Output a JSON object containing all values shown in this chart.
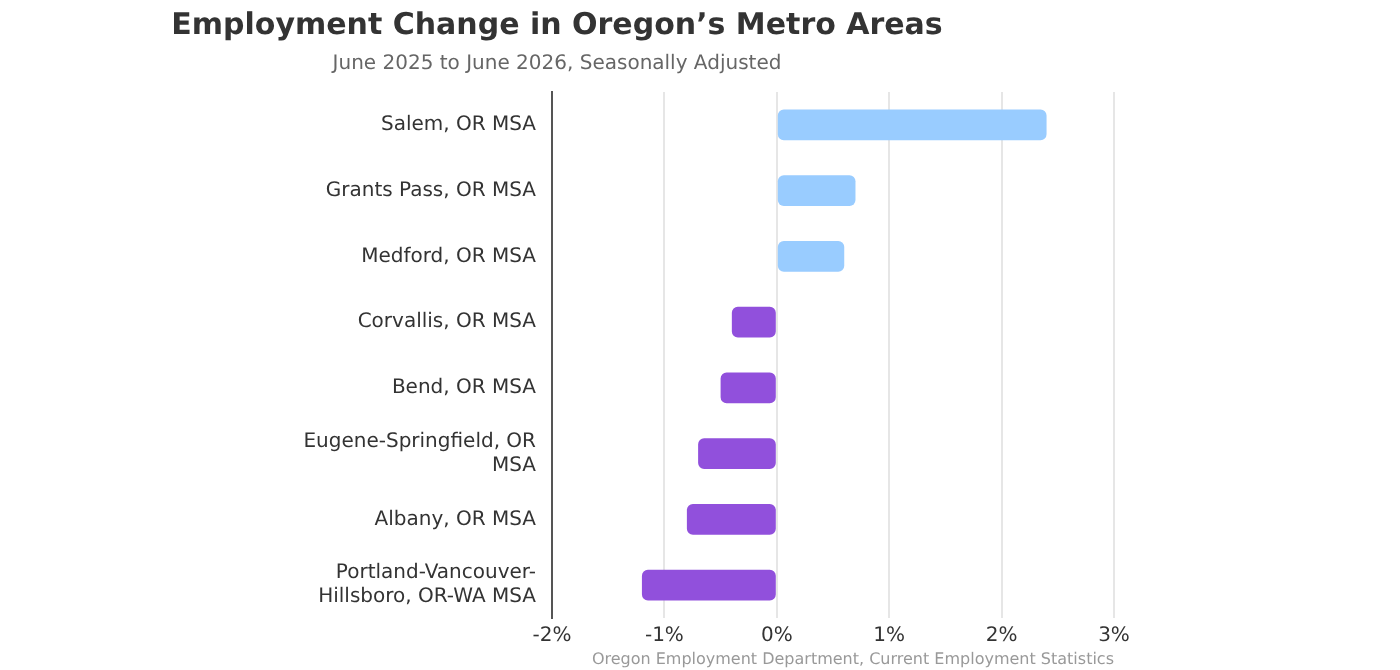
{
  "chart_data": {
    "type": "bar",
    "orientation": "horizontal",
    "title": "Employment Change in Oregon’s Metro Areas",
    "subtitle": "June 2025 to June 2026, Seasonally Adjusted",
    "categories": [
      "Salem, OR MSA",
      "Grants Pass, OR MSA",
      "Medford, OR MSA",
      "Corvallis, OR MSA",
      "Bend, OR MSA",
      "Eugene-Springfield, OR MSA",
      "Albany, OR MSA",
      "Portland-Vancouver-Hillsboro, OR-WA MSA"
    ],
    "values": [
      2.4,
      0.7,
      0.6,
      -0.4,
      -0.5,
      -0.7,
      -0.8,
      -1.2
    ],
    "colors": [
      "#99ccff",
      "#99ccff",
      "#99ccff",
      "#9150dc",
      "#9150dc",
      "#9150dc",
      "#9150dc",
      "#9150dc"
    ],
    "xlim": [
      -2,
      3
    ],
    "xticks": [
      {
        "value": -2,
        "label": "-2%"
      },
      {
        "value": -1,
        "label": "-1%"
      },
      {
        "value": 0,
        "label": "0%"
      },
      {
        "value": 1,
        "label": "1%"
      },
      {
        "value": 2,
        "label": "2%"
      },
      {
        "value": 3,
        "label": "3%"
      }
    ],
    "grid": "x",
    "legend": false,
    "annotations": [
      "Oregon Employment Department, Current Employment Statistics"
    ]
  }
}
